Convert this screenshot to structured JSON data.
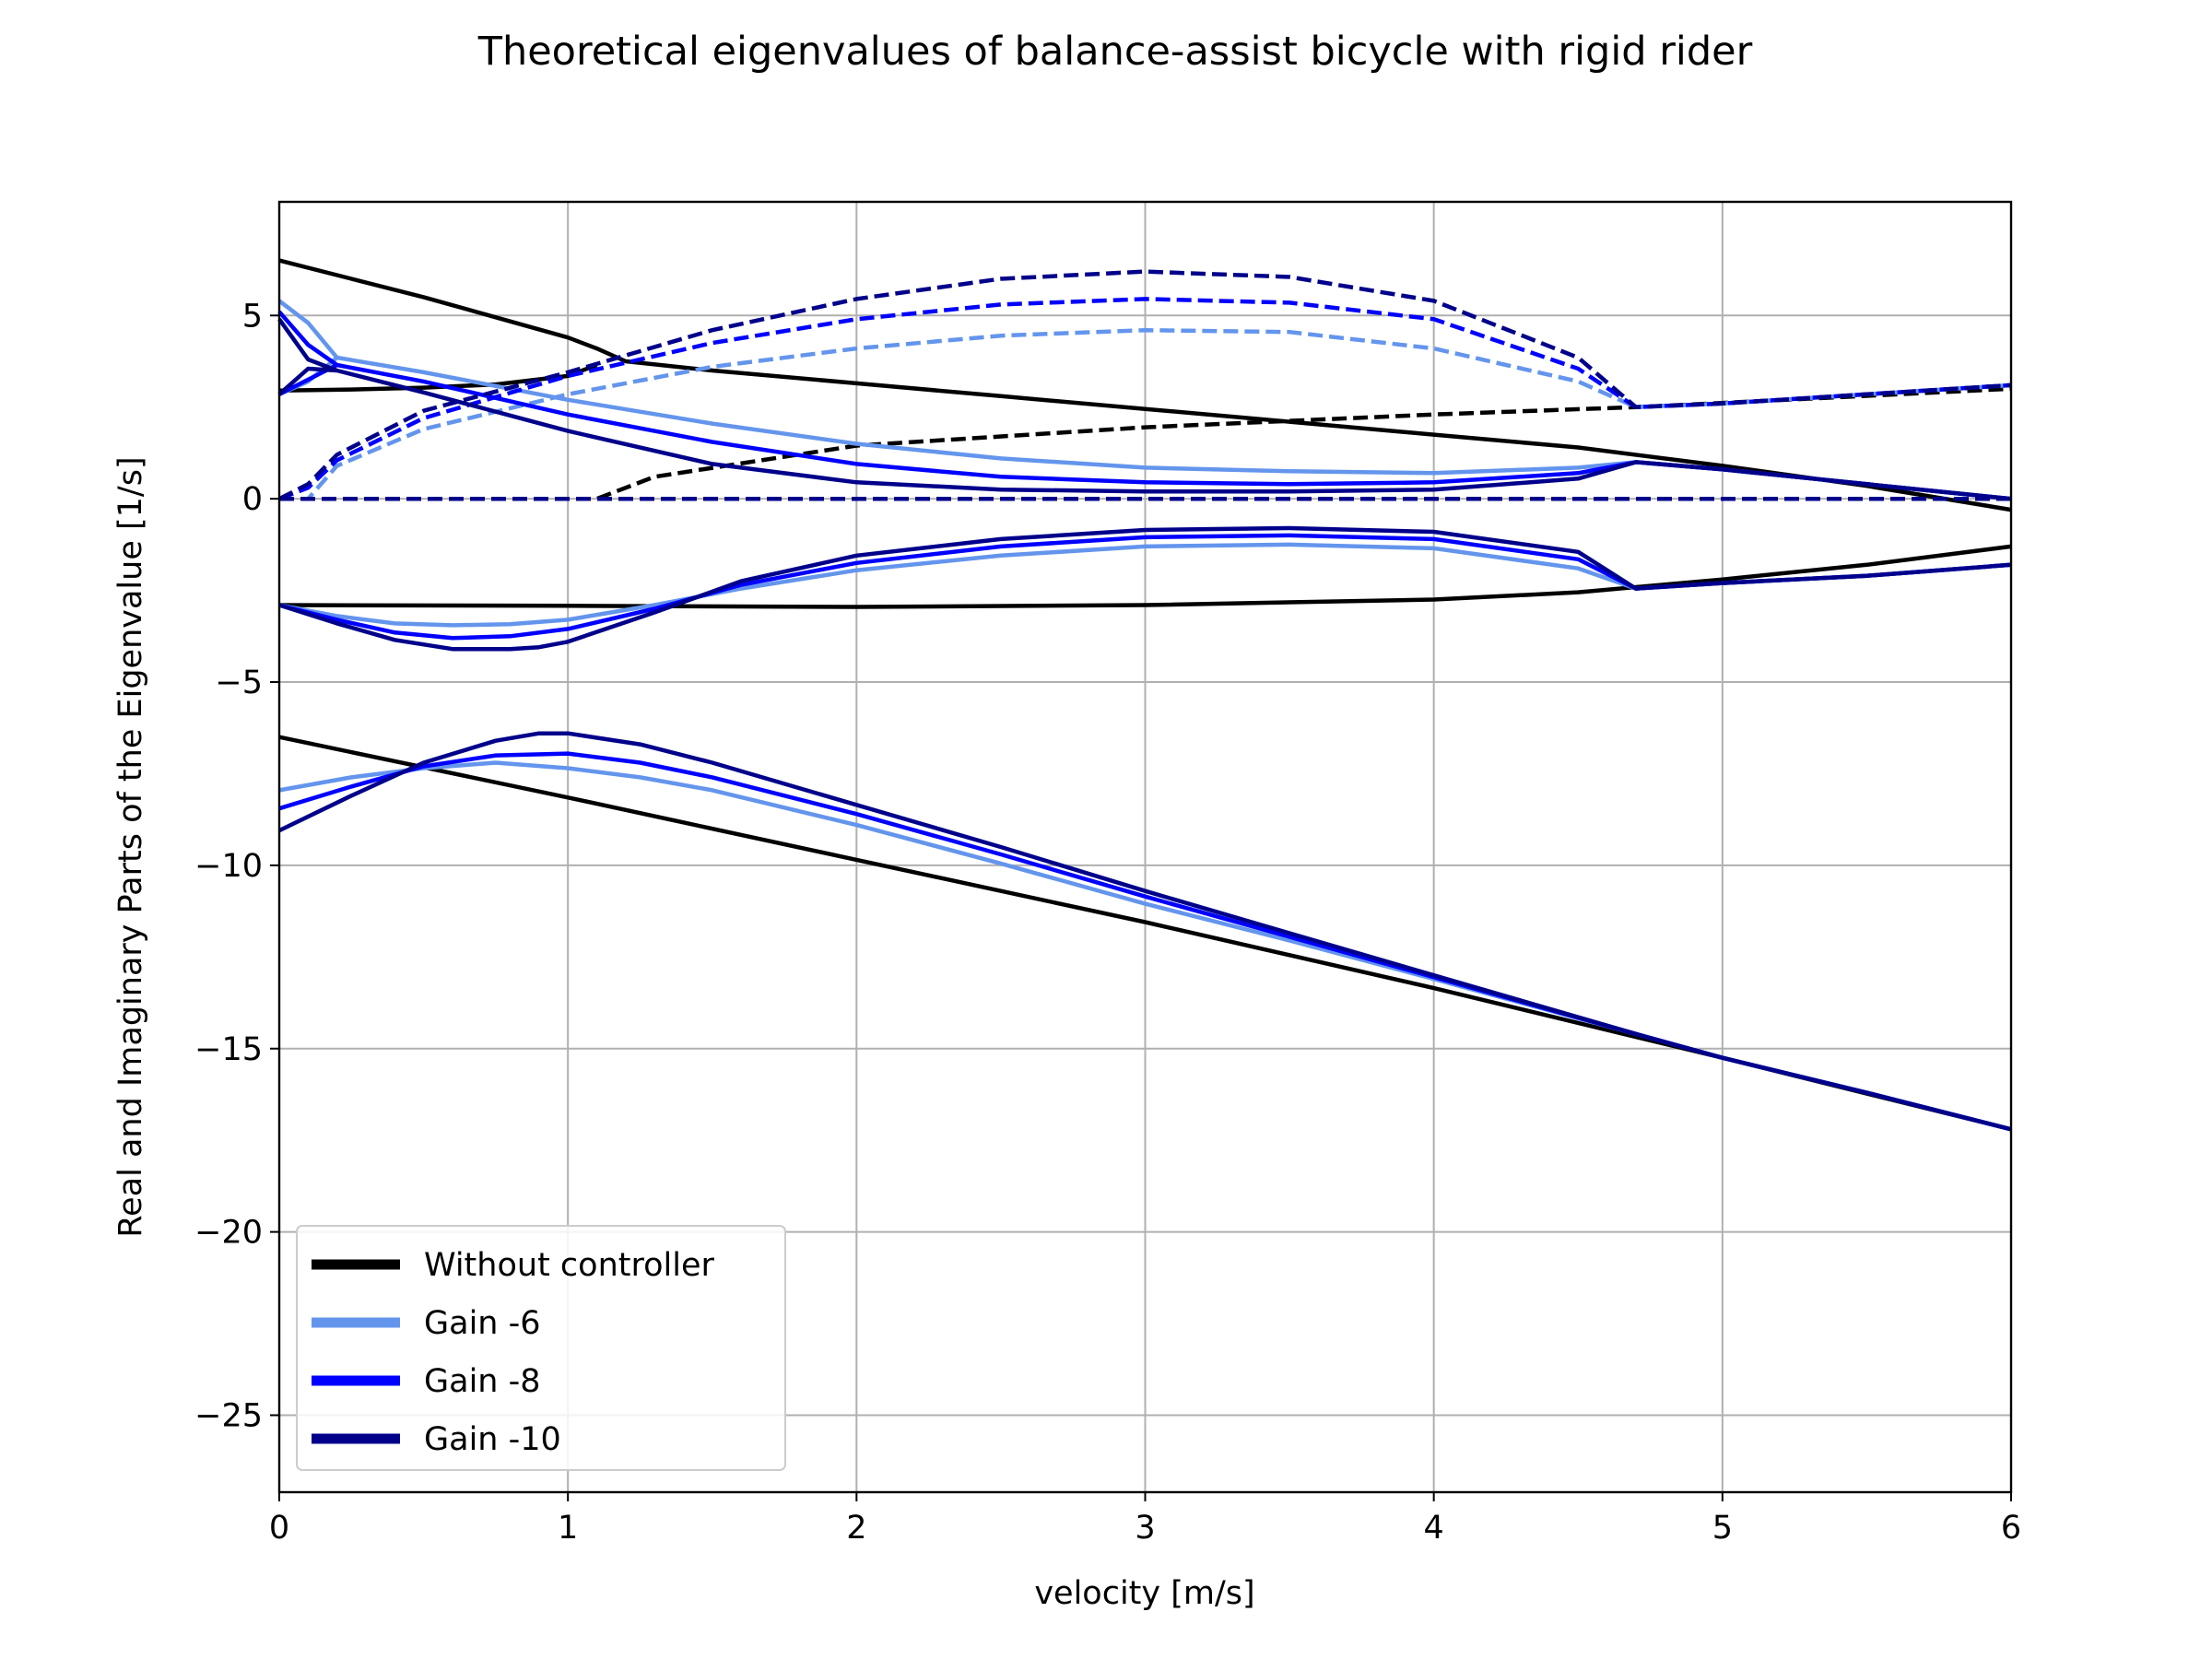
{
  "chart_data": {
    "type": "line",
    "title": "Theoretical eigenvalues of balance-assist bicycle with rigid rider",
    "xlabel": "velocity [m/s]",
    "ylabel": "Real and Imaginary Parts of the Eigenvalue [1/s]",
    "xlim": [
      0,
      6
    ],
    "ylim": [
      -27.1,
      8.1
    ],
    "xticks": [
      0,
      1,
      2,
      3,
      4,
      5,
      6
    ],
    "yticks": [
      5,
      0,
      -5,
      -10,
      -15,
      -20,
      -25
    ],
    "grid": true,
    "legend_position": "lower-left",
    "line_style_note": "solid = real part, dashed = imaginary part",
    "series": [
      {
        "name": "Without controller",
        "color": "#000000",
        "curves": [
          {
            "part": "real",
            "style": "solid",
            "x": [
              0,
              0.25,
              0.5,
              0.75,
              1.0,
              1.1,
              1.2,
              1.5,
              2.0,
              2.5,
              3.0,
              3.5,
              4.0,
              4.5,
              5.0,
              5.5,
              6.0
            ],
            "y": [
              6.5,
              6.0,
              5.5,
              4.95,
              4.4,
              4.1,
              3.75,
              3.5,
              3.15,
              2.8,
              2.45,
              2.1,
              1.75,
              1.4,
              0.9,
              0.35,
              -0.3
            ]
          },
          {
            "part": "real",
            "style": "solid",
            "x": [
              0,
              0.25,
              0.5,
              0.75,
              1.0,
              1.1
            ],
            "y": [
              2.95,
              2.98,
              3.03,
              3.12,
              3.35,
              3.65
            ]
          },
          {
            "part": "real",
            "style": "solid",
            "x": [
              0,
              1,
              2,
              3,
              4,
              4.5,
              5,
              5.5,
              6
            ],
            "y": [
              -2.9,
              -2.92,
              -2.95,
              -2.9,
              -2.75,
              -2.55,
              -2.2,
              -1.8,
              -1.3
            ]
          },
          {
            "part": "real",
            "style": "solid",
            "x": [
              0,
              1,
              2,
              3,
              4,
              5,
              6
            ],
            "y": [
              -6.5,
              -8.15,
              -9.85,
              -11.55,
              -13.35,
              -15.25,
              -17.2
            ]
          },
          {
            "part": "imaginary",
            "style": "dashed",
            "x": [
              0,
              1.1,
              1.3,
              2.0,
              3.0,
              4.0,
              4.7,
              6.0
            ],
            "y": [
              0,
              0,
              0.6,
              1.45,
              1.95,
              2.3,
              2.5,
              3.0
            ]
          },
          {
            "part": "imaginary",
            "style": "dashed",
            "x": [
              0,
              1.1,
              1.3,
              6.0
            ],
            "y": [
              0,
              0,
              0,
              0
            ]
          }
        ]
      },
      {
        "name": "Gain -6",
        "color": "#6495ed",
        "curves": [
          {
            "part": "real",
            "style": "solid",
            "x": [
              0,
              0.1,
              0.2,
              0.5,
              1.0,
              1.5,
              2.0,
              2.5,
              3.0,
              3.5,
              4.0,
              4.5,
              4.7,
              5.0,
              5.5,
              6.0
            ],
            "y": [
              5.4,
              4.8,
              3.85,
              3.45,
              2.7,
              2.05,
              1.5,
              1.1,
              0.85,
              0.75,
              0.7,
              0.85,
              1.0,
              0.8,
              0.4,
              0.0
            ]
          },
          {
            "part": "real",
            "style": "solid",
            "x": [
              0,
              0.1,
              0.2
            ],
            "y": [
              2.85,
              3.2,
              3.85
            ]
          },
          {
            "part": "real",
            "style": "solid",
            "x": [
              0,
              0.2,
              0.4,
              0.6,
              0.8,
              1.0,
              1.3,
              1.6,
              2.0,
              2.5,
              3.0,
              3.5,
              4.0,
              4.5,
              4.7,
              5.0,
              5.5,
              6.0
            ],
            "y": [
              -2.9,
              -3.2,
              -3.4,
              -3.45,
              -3.42,
              -3.3,
              -2.9,
              -2.45,
              -1.95,
              -1.55,
              -1.3,
              -1.25,
              -1.35,
              -1.9,
              -2.45,
              -2.3,
              -2.1,
              -1.8
            ]
          },
          {
            "part": "real",
            "style": "solid",
            "x": [
              0,
              0.25,
              0.5,
              0.75,
              1.0,
              1.25,
              1.5,
              2.0,
              2.5,
              3.0,
              3.5,
              4.0,
              4.7,
              5.0,
              5.5,
              6.0
            ],
            "y": [
              -7.95,
              -7.6,
              -7.35,
              -7.2,
              -7.35,
              -7.6,
              -7.95,
              -8.9,
              -9.95,
              -11.05,
              -12.05,
              -13.1,
              -14.6,
              -15.25,
              -16.2,
              -17.2
            ]
          },
          {
            "part": "imaginary",
            "style": "dashed",
            "x": [
              0,
              0.1,
              0.2,
              0.5,
              1.0,
              1.5,
              2.0,
              2.5,
              3.0,
              3.5,
              4.0,
              4.5,
              4.7,
              5.0,
              5.5,
              6.0
            ],
            "y": [
              0,
              0.0,
              0.9,
              1.9,
              2.85,
              3.6,
              4.1,
              4.45,
              4.6,
              4.55,
              4.1,
              3.2,
              2.5,
              2.6,
              2.85,
              3.1
            ]
          },
          {
            "part": "imaginary",
            "style": "dashed",
            "x": [
              0,
              6.0
            ],
            "y": [
              0,
              0
            ]
          }
        ]
      },
      {
        "name": "Gain -8",
        "color": "#0000ff",
        "curves": [
          {
            "part": "real",
            "style": "solid",
            "x": [
              0,
              0.1,
              0.2,
              0.5,
              1.0,
              1.5,
              2.0,
              2.5,
              3.0,
              3.5,
              4.0,
              4.5,
              4.7,
              5.0,
              5.5,
              6.0
            ],
            "y": [
              5.1,
              4.2,
              3.65,
              3.2,
              2.3,
              1.55,
              0.95,
              0.6,
              0.45,
              0.4,
              0.45,
              0.7,
              1.0,
              0.8,
              0.4,
              0.0
            ]
          },
          {
            "part": "real",
            "style": "solid",
            "x": [
              0,
              0.1,
              0.2
            ],
            "y": [
              2.85,
              3.25,
              3.65
            ]
          },
          {
            "part": "real",
            "style": "solid",
            "x": [
              0,
              0.2,
              0.4,
              0.6,
              0.8,
              1.0,
              1.3,
              1.6,
              2.0,
              2.5,
              3.0,
              3.5,
              4.0,
              4.5,
              4.7,
              5.0,
              5.5,
              6.0
            ],
            "y": [
              -2.9,
              -3.3,
              -3.65,
              -3.8,
              -3.75,
              -3.55,
              -3.0,
              -2.35,
              -1.75,
              -1.3,
              -1.05,
              -1.0,
              -1.1,
              -1.65,
              -2.45,
              -2.3,
              -2.1,
              -1.8
            ]
          },
          {
            "part": "real",
            "style": "solid",
            "x": [
              0,
              0.25,
              0.5,
              0.75,
              1.0,
              1.25,
              1.5,
              2.0,
              2.5,
              3.0,
              3.5,
              4.0,
              4.7,
              5.0,
              5.5,
              6.0
            ],
            "y": [
              -8.45,
              -7.85,
              -7.3,
              -7.0,
              -6.95,
              -7.2,
              -7.6,
              -8.6,
              -9.7,
              -10.85,
              -11.95,
              -13.05,
              -14.6,
              -15.25,
              -16.2,
              -17.2
            ]
          },
          {
            "part": "imaginary",
            "style": "dashed",
            "x": [
              0,
              0.1,
              0.2,
              0.5,
              1.0,
              1.5,
              2.0,
              2.5,
              3.0,
              3.5,
              4.0,
              4.5,
              4.7,
              5.0,
              5.5,
              6.0
            ],
            "y": [
              0,
              0.3,
              1.05,
              2.2,
              3.35,
              4.25,
              4.9,
              5.3,
              5.45,
              5.35,
              4.9,
              3.55,
              2.5,
              2.6,
              2.85,
              3.1
            ]
          },
          {
            "part": "imaginary",
            "style": "dashed",
            "x": [
              0,
              6.0
            ],
            "y": [
              0,
              0
            ]
          }
        ]
      },
      {
        "name": "Gain -10",
        "color": "#00008b",
        "curves": [
          {
            "part": "real",
            "style": "solid",
            "x": [
              0,
              0.1,
              0.2,
              0.5,
              1.0,
              1.5,
              2.0,
              2.5,
              3.0,
              3.5,
              4.0,
              4.5,
              4.7,
              5.0,
              5.5,
              6.0
            ],
            "y": [
              4.9,
              3.8,
              3.5,
              2.9,
              1.85,
              0.95,
              0.45,
              0.25,
              0.2,
              0.2,
              0.25,
              0.55,
              1.0,
              0.8,
              0.4,
              0.0
            ]
          },
          {
            "part": "real",
            "style": "solid",
            "x": [
              0,
              0.1,
              0.2
            ],
            "y": [
              2.85,
              3.55,
              3.5
            ]
          },
          {
            "part": "real",
            "style": "solid",
            "x": [
              0,
              0.2,
              0.4,
              0.6,
              0.8,
              0.9,
              1.0,
              1.3,
              1.6,
              2.0,
              2.5,
              3.0,
              3.5,
              4.0,
              4.5,
              4.7,
              5.0,
              5.5,
              6.0
            ],
            "y": [
              -2.9,
              -3.4,
              -3.85,
              -4.1,
              -4.1,
              -4.05,
              -3.9,
              -3.1,
              -2.25,
              -1.55,
              -1.1,
              -0.85,
              -0.8,
              -0.9,
              -1.45,
              -2.45,
              -2.3,
              -2.1,
              -1.8
            ]
          },
          {
            "part": "real",
            "style": "solid",
            "x": [
              0,
              0.25,
              0.5,
              0.75,
              0.9,
              1.0,
              1.25,
              1.5,
              2.0,
              2.5,
              3.0,
              3.5,
              4.0,
              4.7,
              5.0,
              5.5,
              6.0
            ],
            "y": [
              -9.05,
              -8.1,
              -7.2,
              -6.6,
              -6.4,
              -6.4,
              -6.7,
              -7.2,
              -8.35,
              -9.5,
              -10.7,
              -11.85,
              -13.0,
              -14.6,
              -15.25,
              -16.2,
              -17.2
            ]
          },
          {
            "part": "imaginary",
            "style": "dashed",
            "x": [
              0,
              0.1,
              0.2,
              0.5,
              1.0,
              1.5,
              2.0,
              2.5,
              3.0,
              3.5,
              4.0,
              4.5,
              4.7,
              5.0,
              5.5,
              6.0
            ],
            "y": [
              0,
              0.4,
              1.2,
              2.4,
              3.45,
              4.6,
              5.45,
              6.0,
              6.2,
              6.05,
              5.4,
              3.85,
              2.5,
              2.6,
              2.85,
              3.1
            ]
          },
          {
            "part": "imaginary",
            "style": "dashed",
            "x": [
              0,
              6.0
            ],
            "y": [
              0,
              0
            ]
          }
        ]
      }
    ]
  }
}
